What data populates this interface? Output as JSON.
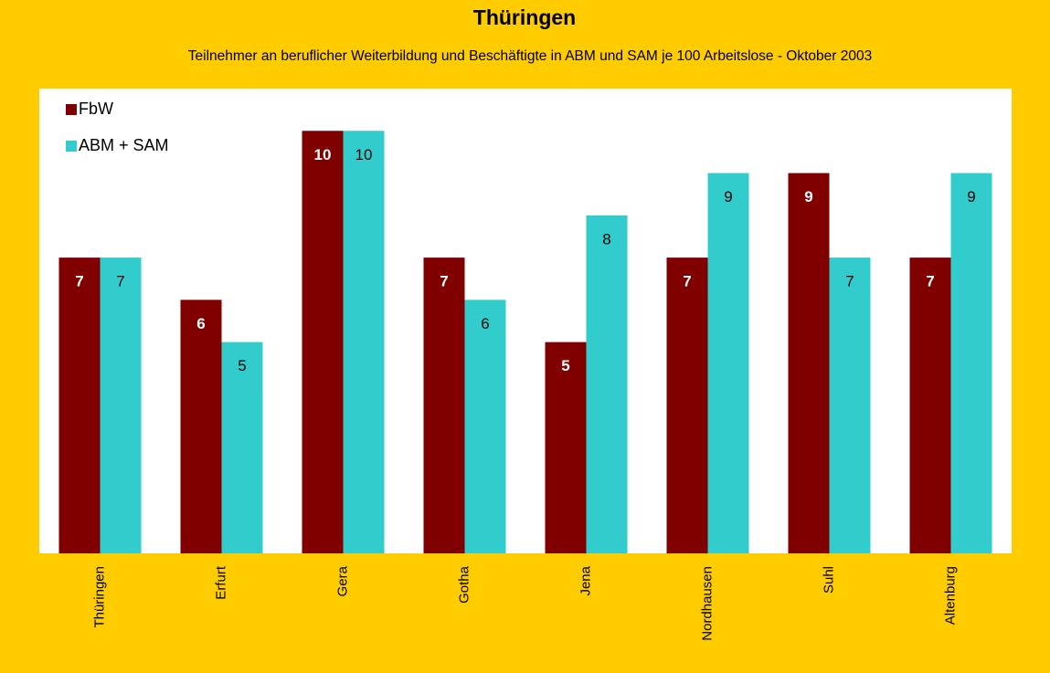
{
  "chart_data": {
    "type": "bar",
    "title": "Thüringen",
    "subtitle": "Teilnehmer an beruflicher Weiterbildung und Beschäftigte in ABM und SAM je 100 Arbeitslose - Oktober 2003",
    "categories": [
      "Thüringen",
      "Erfurt",
      "Gera",
      "Gotha",
      "Jena",
      "Nordhausen",
      "Suhl",
      "Altenburg"
    ],
    "series": [
      {
        "name": "FbW",
        "color": "#800000",
        "values": [
          7,
          6,
          10,
          7,
          5,
          7,
          9,
          7
        ]
      },
      {
        "name": "ABM + SAM",
        "color": "#33CCCC",
        "values": [
          7,
          5,
          10,
          6,
          8,
          9,
          7,
          9
        ]
      }
    ],
    "ylim": [
      0,
      11
    ],
    "legend": "top-left"
  }
}
